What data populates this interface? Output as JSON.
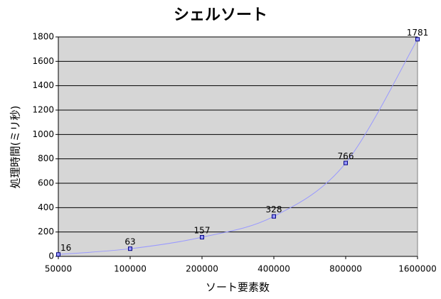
{
  "chart_data": {
    "type": "line",
    "title": "シェルソート",
    "x_label": "ソート要素数",
    "y_label": "処理時間(ミリ秒)",
    "categories": [
      "50000",
      "100000",
      "200000",
      "400000",
      "800000",
      "1600000"
    ],
    "values": [
      16,
      63,
      157,
      328,
      766,
      1781
    ],
    "color": "#9999ff",
    "ylim": [
      0,
      1800
    ],
    "yticks": [
      0,
      200,
      400,
      600,
      800,
      1000,
      1200,
      1400,
      1600,
      1800
    ],
    "grid": true
  }
}
